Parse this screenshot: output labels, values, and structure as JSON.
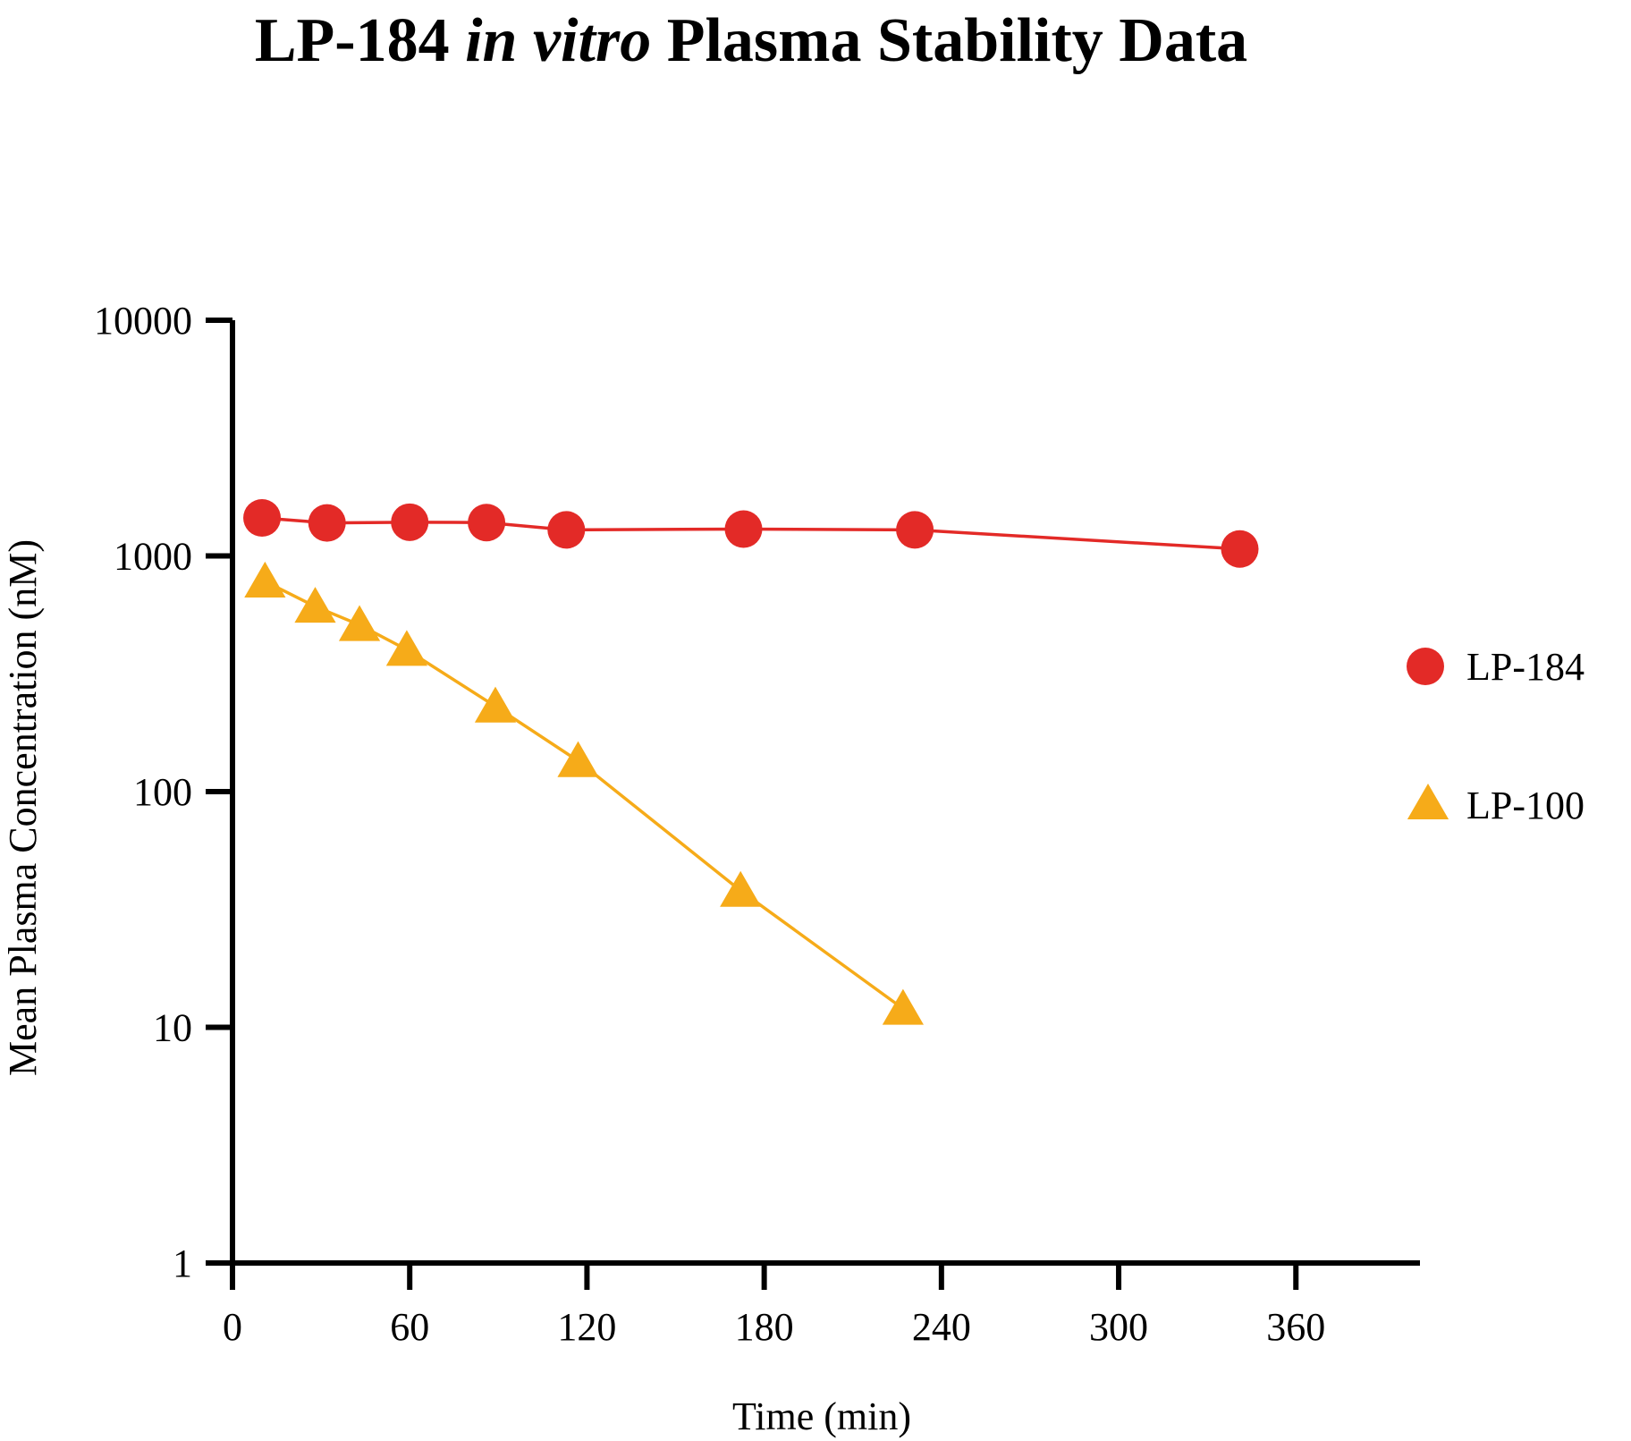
{
  "chart_data": {
    "type": "scatter",
    "title_parts": [
      "LP-184 ",
      "in vitro",
      " Plasma Stability Data"
    ],
    "xlabel": "Time (min)",
    "ylabel": "Mean Plasma Concentration (nM)",
    "xlim": [
      0,
      402
    ],
    "ylim": [
      1,
      10000
    ],
    "y_scale": "log",
    "x_ticks": [
      0,
      60,
      120,
      180,
      240,
      300,
      360
    ],
    "x_tick_labels": [
      "0",
      "60",
      "120",
      "180",
      "240",
      "300",
      "360"
    ],
    "y_ticks": [
      1,
      10,
      100,
      1000,
      10000
    ],
    "y_tick_labels": [
      "1",
      "10",
      "100",
      "1000",
      "10000"
    ],
    "legend_position": "right",
    "series": [
      {
        "name": "LP-184",
        "marker": "circle",
        "color": "#e32a27",
        "x": [
          10,
          32,
          60,
          86,
          113,
          173,
          231,
          341
        ],
        "y": [
          1450,
          1380,
          1390,
          1385,
          1290,
          1300,
          1290,
          1070
        ]
      },
      {
        "name": "LP-100",
        "marker": "triangle",
        "color": "#f6ab19",
        "x": [
          11,
          28,
          43,
          59,
          89,
          117,
          172,
          227
        ],
        "y": [
          780,
          610,
          510,
          400,
          230,
          135,
          38,
          12
        ]
      }
    ]
  }
}
